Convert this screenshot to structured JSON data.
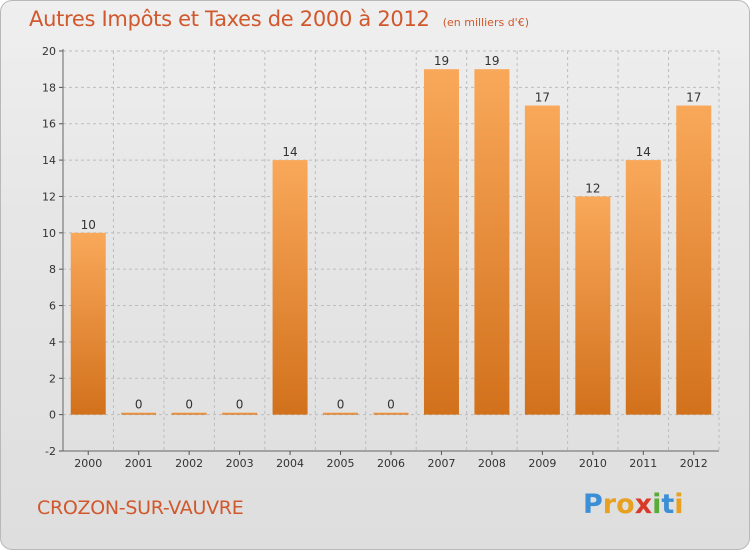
{
  "header": {
    "title": "Autres Impôts et Taxes de 2000 à 2012",
    "unit": "(en milliers d'€)"
  },
  "footer": {
    "commune": "CROZON-SUR-VAUVRE",
    "brand_letters": [
      "P",
      "r",
      "o",
      "x",
      "i",
      "t",
      "i"
    ],
    "brand_colors": [
      "#3a8fd6",
      "#e8a020",
      "#e8a020",
      "#d83a2a",
      "#5aab3a",
      "#3a8fd6",
      "#e8a020"
    ]
  },
  "colors": {
    "bar_light": "#f9a85a",
    "bar_dark": "#d2711c",
    "title": "#d0582c",
    "axis_text": "#333333",
    "grid": "#bdbdbd"
  },
  "chart_data": {
    "type": "bar",
    "categories": [
      "2000",
      "2001",
      "2002",
      "2003",
      "2004",
      "2005",
      "2006",
      "2007",
      "2008",
      "2009",
      "2010",
      "2011",
      "2012"
    ],
    "values": [
      10,
      0,
      0,
      0,
      14,
      0,
      0,
      19,
      19,
      17,
      12,
      14,
      17
    ],
    "value_labels": [
      "10",
      "0",
      "0",
      "0",
      "14",
      "0",
      "0",
      "19",
      "19",
      "17",
      "12",
      "14",
      "17"
    ],
    "yticks": [
      "-2",
      "0",
      "2",
      "4",
      "6",
      "8",
      "10",
      "12",
      "14",
      "16",
      "18",
      "20"
    ],
    "ylim": [
      -2,
      20
    ],
    "grid": true
  }
}
